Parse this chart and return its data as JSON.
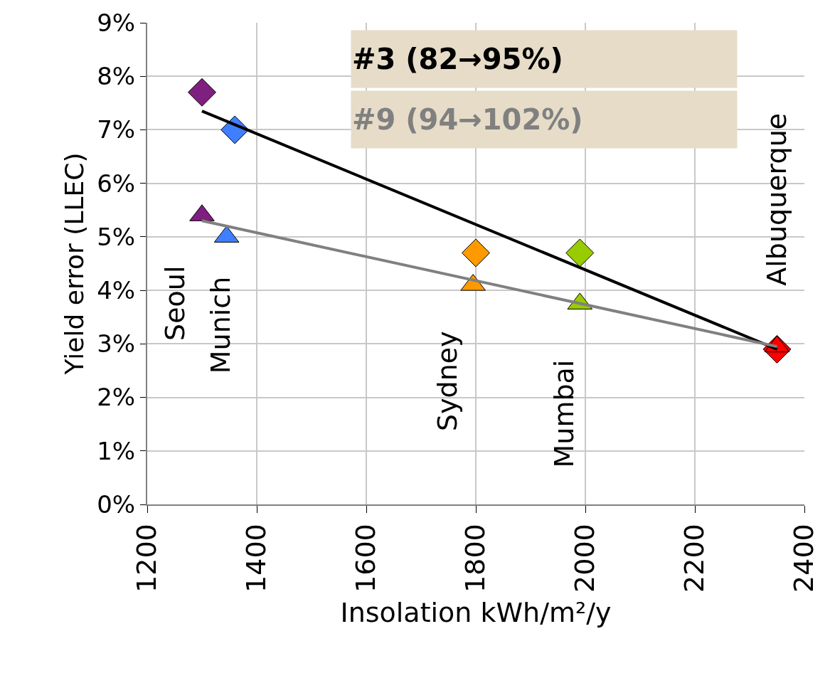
{
  "chart_data": {
    "type": "scatter",
    "xlabel": "Insolation kWh/m²/y",
    "ylabel": "Yield error (LLEC)",
    "series": [
      {
        "type": "scatter",
        "marker": "diamond",
        "x": [
          1300,
          1360,
          1800,
          1990,
          2350
        ],
        "values": [
          7.7,
          7.0,
          4.7,
          4.7,
          2.9
        ],
        "colors": [
          "#7f1f7f",
          "#3f7fff",
          "#ff9900",
          "#99cc00",
          "#ff0000"
        ]
      },
      {
        "type": "scatter",
        "marker": "triangle",
        "x": [
          1300,
          1345,
          1795,
          1990,
          2350
        ],
        "values": [
          5.4,
          5.0,
          4.1,
          3.75,
          2.95
        ],
        "colors": [
          "#7f1f7f",
          "#3f7fff",
          "#ff9900",
          "#99cc00",
          "#ff0000"
        ]
      },
      {
        "type": "line",
        "name": "#3 (82→95%)",
        "marker": "none",
        "color": "#000000",
        "x": [
          1300,
          2350
        ],
        "values": [
          7.35,
          2.9
        ]
      },
      {
        "type": "line",
        "name": "#9 (94→102%)",
        "marker": "none",
        "color": "#808080",
        "x": [
          1300,
          2350
        ],
        "values": [
          5.3,
          2.95
        ]
      }
    ],
    "annotations": [
      "Seoul",
      "Munich",
      "Sydney",
      "Mumbai",
      "Albuquerque"
    ],
    "xlim": [
      1200,
      2400
    ],
    "xticks": [
      1200,
      1400,
      1600,
      1800,
      2000,
      2200,
      2400
    ],
    "ylim": [
      0,
      9
    ],
    "yticks": [
      {
        "value": 0,
        "label": "0%"
      },
      {
        "value": 1,
        "label": "1%"
      },
      {
        "value": 2,
        "label": "2%"
      },
      {
        "value": 3,
        "label": "3%"
      },
      {
        "value": 4,
        "label": "4%"
      },
      {
        "value": 5,
        "label": "5%"
      },
      {
        "value": 6,
        "label": "6%"
      },
      {
        "value": 7,
        "label": "7%"
      },
      {
        "value": 8,
        "label": "8%"
      },
      {
        "value": 9,
        "label": "9%"
      }
    ],
    "grid": true,
    "legend": false
  }
}
